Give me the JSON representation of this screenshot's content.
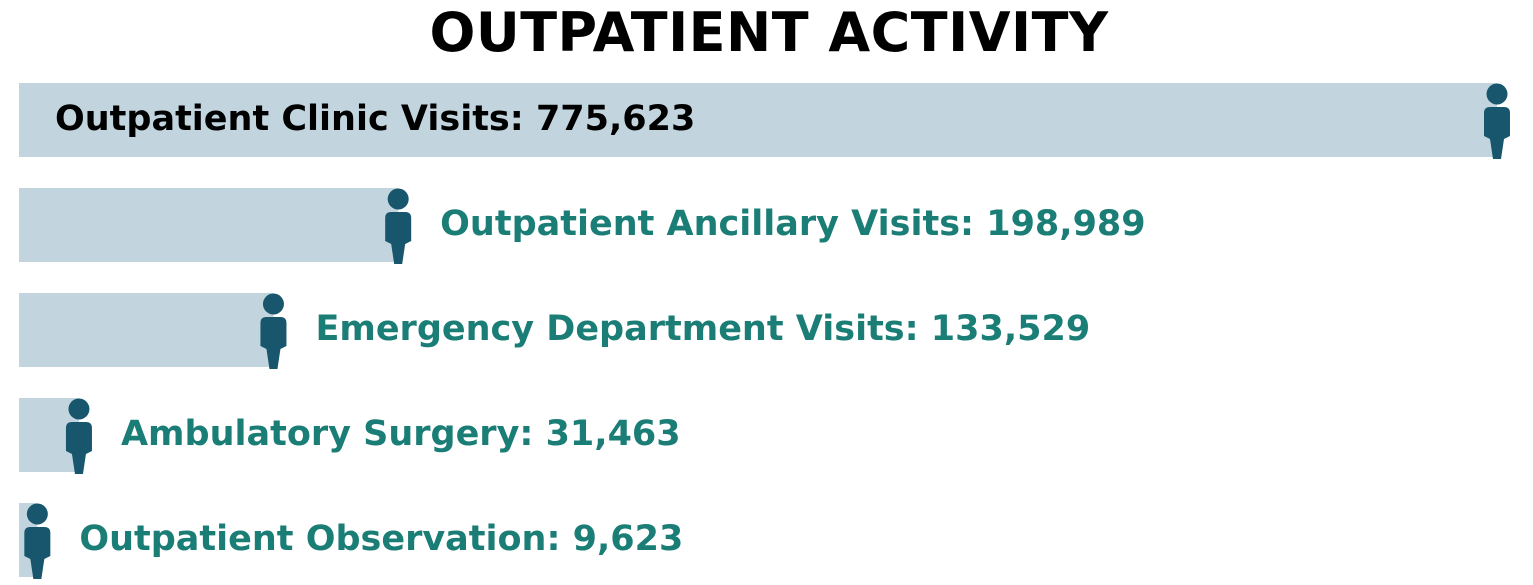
{
  "chart_data": {
    "type": "bar",
    "orientation": "horizontal",
    "title": "OUTPATIENT ACTIVITY",
    "xlabel": "",
    "ylabel": "",
    "grid": false,
    "legend": "none",
    "xlim": [
      0,
      775623
    ],
    "categories": [
      "Outpatient Clinic Visits",
      "Outpatient Ancillary Visits",
      "Emergency Department Visits",
      "Ambulatory Surgery",
      "Outpatient Observation"
    ],
    "values": [
      775623,
      198989,
      133529,
      31463,
      9623
    ],
    "labels": [
      "Outpatient Clinic Visits: 775,623",
      "Outpatient Ancillary Visits: 198,989",
      "Emergency Department Visits: 133,529",
      "Ambulatory Surgery: 31,463",
      "Outpatient Observation: 9,623"
    ]
  },
  "colors": {
    "bar": "#c2d5df",
    "person_icon": "#17566d",
    "label_inside": "#000000",
    "label_outside": "#1a7d76",
    "title": "#000000"
  },
  "icons": {
    "end_marker": "person-icon"
  }
}
